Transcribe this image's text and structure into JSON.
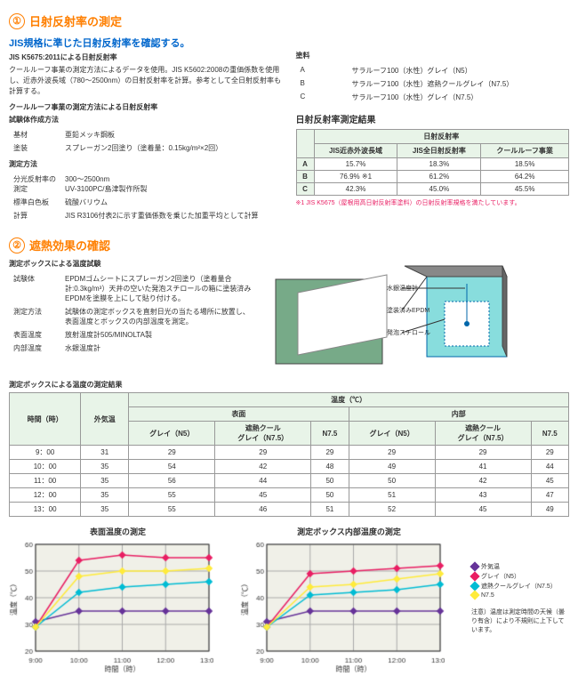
{
  "section1": {
    "title": "日射反射率の測定",
    "subtitle": "JIS規格に準じた日射反射率を確認する。",
    "sub2": "JIS K5675:2011による日射反射率",
    "desc1": "クールルーフ事業の測定方法によるデータを使用。JIS K5602:2008の重価係数を使用し、近赤外波長域（780～2500nm）の日射反射率を計算。参考として全日射反射率も計算する。",
    "sub3": "クールルーフ事業の測定方法による日射反射率",
    "sub4": "試験体作成方法",
    "kvl": [
      [
        "基材",
        "亜鉛メッキ鋼板"
      ],
      [
        "塗装",
        "スプレーガン2回塗り（塗着量：0.15kg/m²×2回）"
      ]
    ],
    "sub5": "測定方法",
    "kvl2": [
      [
        "分光反射率の測定",
        "300～2500nm\nUV-3100PC/島津製作所製"
      ],
      [
        "標準白色板",
        "硫酸バリウム"
      ],
      [
        "計算",
        "JIS R3106付表2に示す重価係数を乗じた加重平均として計算"
      ]
    ],
    "paint_title": "塗料",
    "paints": [
      [
        "A",
        "サラルーフ100（水性）グレイ（N5）"
      ],
      [
        "B",
        "サラルーフ100（水性）遮熱クールグレイ（N7.5）"
      ],
      [
        "C",
        "サラルーフ100（水性）グレイ（N7.5）"
      ]
    ],
    "result_title": "日射反射率測定結果",
    "tbl1_header": [
      "",
      "JIS近赤外波長域",
      "JIS全日射反射率",
      "クールルーフ事業"
    ],
    "tbl1_sub": "日射反射率",
    "tbl1_rows": [
      [
        "A",
        "15.7%",
        "18.3%",
        "18.5%"
      ],
      [
        "B",
        "76.9% ※1",
        "61.2%",
        "64.2%"
      ],
      [
        "C",
        "42.3%",
        "45.0%",
        "45.5%"
      ]
    ],
    "note1": "※1 JIS K5675（屋根用高日射反射率塗料）の日射反射率規格を満たしています。"
  },
  "section2": {
    "title": "遮熱効果の確認",
    "sub1": "測定ボックスによる温度試験",
    "kvl": [
      [
        "試験体",
        "EPDMゴムシートにスプレーガン2回塗り（塗着量合計:0.3kg/m³）天井の空いた発泡スチロールの箱に塗装済みEPDMを塗膜を上にして貼り付ける。"
      ],
      [
        "測定方法",
        "試験体の測定ボックスを直射日光の当たる場所に放置し、表面温度とボックスの内部温度を測定。"
      ],
      [
        "表面温度",
        "放射温度計505/MINOLTA製"
      ],
      [
        "内部温度",
        "水銀温度計"
      ]
    ],
    "diagram_labels": [
      "水銀温度計",
      "塗装済みEPDM",
      "発泡スチロール"
    ],
    "sub2": "測定ボックスによる温度の測定結果",
    "tbl2_h1": [
      "時間（時）",
      "外気温",
      "温度（℃）"
    ],
    "tbl2_h2": [
      "表面",
      "内部"
    ],
    "tbl2_h3": [
      "グレイ（N5）",
      "遮熱クール\nグレイ（N7.5）",
      "N7.5",
      "グレイ（N5）",
      "遮熱クール\nグレイ（N7.5）",
      "N7.5"
    ],
    "tbl2_rows": [
      [
        "9：00",
        "31",
        "29",
        "29",
        "29",
        "29",
        "29",
        "29"
      ],
      [
        "10：00",
        "35",
        "54",
        "42",
        "48",
        "49",
        "41",
        "44"
      ],
      [
        "11：00",
        "35",
        "56",
        "44",
        "50",
        "50",
        "42",
        "45"
      ],
      [
        "12：00",
        "35",
        "55",
        "45",
        "50",
        "51",
        "43",
        "47"
      ],
      [
        "13：00",
        "35",
        "55",
        "46",
        "51",
        "52",
        "45",
        "49"
      ]
    ],
    "chart1_title": "表面温度の測定",
    "chart2_title": "測定ボックス内部温度の測定",
    "legend": [
      "外気温",
      "グレイ（N5）",
      "遮熱クールグレイ（N7.5）",
      "N7.5"
    ],
    "legend_colors": [
      "#663399",
      "#e91e63",
      "#00bcd4",
      "#ffeb3b"
    ],
    "xlabels": [
      "9:00",
      "10:00",
      "11:00",
      "12:00",
      "13:00"
    ],
    "chart_bg": "#f0f0e8",
    "grid_color": "#aaa",
    "ylim": [
      20,
      60
    ],
    "ystep": 10,
    "chart1_data": {
      "外気温": [
        31,
        35,
        35,
        35,
        35
      ],
      "グレイ": [
        29,
        54,
        56,
        55,
        55
      ],
      "遮熱": [
        29,
        42,
        44,
        45,
        46
      ],
      "N75": [
        29,
        48,
        50,
        50,
        51
      ]
    },
    "chart2_data": {
      "外気温": [
        31,
        35,
        35,
        35,
        35
      ],
      "グレイ": [
        29,
        49,
        50,
        51,
        52
      ],
      "遮熱": [
        29,
        41,
        42,
        43,
        45
      ],
      "N75": [
        29,
        44,
        45,
        47,
        49
      ]
    },
    "note2": "注意）温度は測定時間の天候（曇り有含）により不規則に上下しています。",
    "ylabel": "温度（℃）",
    "xlabel": "時間（時）"
  }
}
